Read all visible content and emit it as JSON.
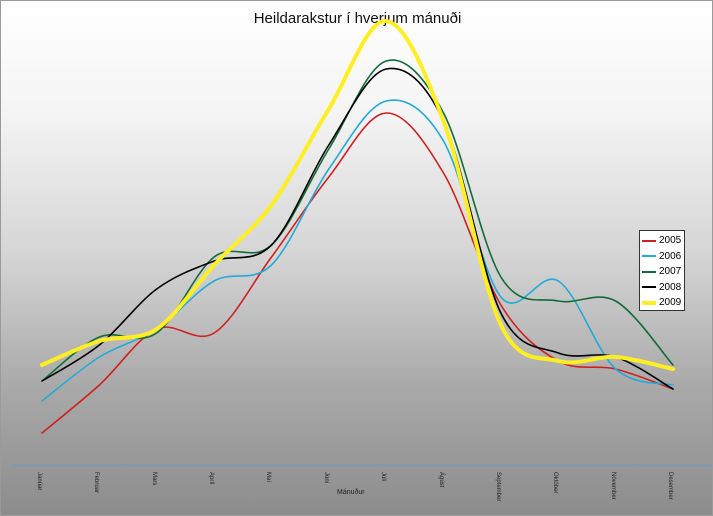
{
  "chart_data": {
    "type": "line",
    "title": "Heildarakstur í hverjum mánuði",
    "xlabel": "Mánuður",
    "ylabel": "",
    "categories": [
      "Janúar",
      "Febrúar",
      "Mars",
      "Apríl",
      "Maí",
      "Júní",
      "Júlí",
      "Ágúst",
      "September",
      "Október",
      "Nóvember",
      "Desember"
    ],
    "ylim": [
      0,
      100
    ],
    "grid": false,
    "legend_position": "right",
    "series": [
      {
        "name": "2005",
        "color": "#d11f1f",
        "values": [
          7,
          19,
          33,
          32,
          51,
          71,
          87,
          72,
          39,
          25,
          23,
          18
        ]
      },
      {
        "name": "2006",
        "color": "#22aad8",
        "values": [
          15,
          26,
          33,
          45,
          49,
          73,
          90,
          80,
          41,
          45,
          23,
          19
        ]
      },
      {
        "name": "2007",
        "color": "#136b3a",
        "values": [
          20,
          31,
          32,
          51,
          54,
          78,
          100,
          87,
          46,
          40,
          40,
          24
        ]
      },
      {
        "name": "2008",
        "color": "#000000",
        "values": [
          20,
          29,
          43,
          50,
          54,
          79,
          98,
          85,
          37,
          27,
          26,
          18
        ]
      },
      {
        "name": "2009",
        "color": "#ffee22",
        "values": [
          24,
          30,
          33,
          49,
          64,
          88,
          110,
          85,
          34,
          25,
          26,
          23
        ]
      }
    ]
  }
}
